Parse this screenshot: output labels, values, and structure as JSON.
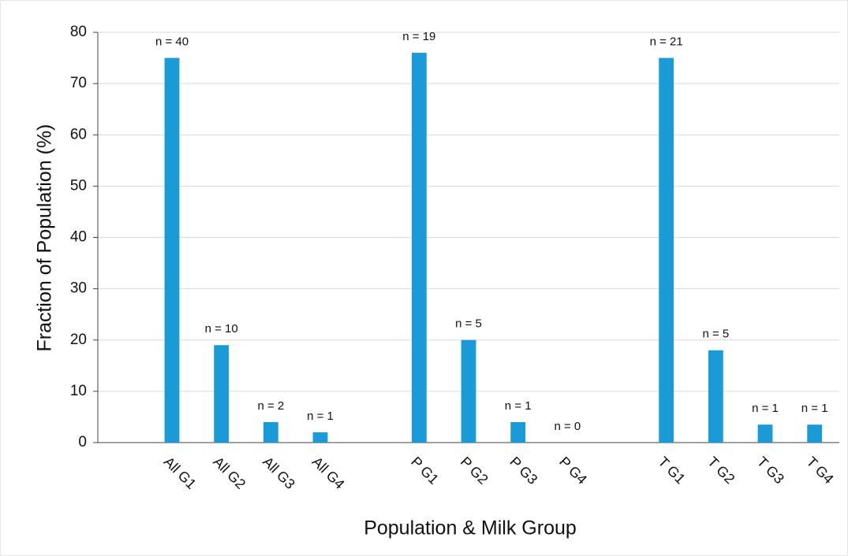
{
  "chart_data": {
    "type": "bar",
    "x_label": "Population & Milk Group",
    "y_label": "Fraction of Population (%)",
    "categories": [
      null,
      "All G1",
      "All G2",
      "All G3",
      "All G4",
      null,
      "P G1",
      "P G2",
      "P G3",
      "P G4",
      null,
      "T G1",
      "T G2",
      "T G3",
      "T G4"
    ],
    "values": [
      null,
      75,
      19,
      4,
      2,
      null,
      76,
      20,
      4,
      0,
      null,
      75,
      18,
      3.5,
      3.5
    ],
    "annotations": [
      null,
      "n = 40",
      "n = 10",
      "n = 2",
      "n = 1",
      null,
      "n = 19",
      "n = 5",
      "n = 1",
      "n = 0",
      null,
      "n = 21",
      "n = 5",
      "n = 1",
      "n = 1"
    ],
    "color": "#1a9ad6",
    "ylim": [
      0,
      80
    ],
    "yticks": [
      0,
      10,
      20,
      30,
      40,
      50,
      60,
      70,
      80
    ],
    "grid": true
  }
}
